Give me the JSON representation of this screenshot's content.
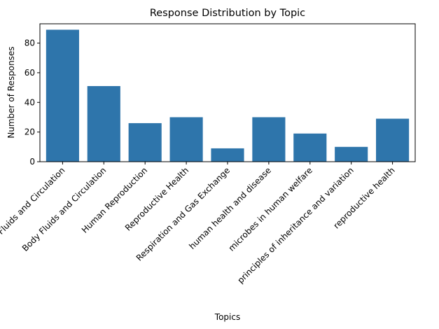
{
  "chart_data": {
    "type": "bar",
    "title": "Response Distribution by Topic",
    "xlabel": "Topics",
    "ylabel": "Number of Responses",
    "categories": [
      "Body Fluids and Circulation",
      "Body Fluids and Circulation",
      "Human Reproduction",
      "Reproductive Health",
      "Respiration and Gas Exchange",
      "human health and disease",
      "microbes in human welfare",
      "principles of inheritance and variation",
      "reproductive health"
    ],
    "values": [
      89,
      51,
      26,
      30,
      9,
      30,
      19,
      10,
      29
    ],
    "ylim": [
      0,
      93
    ],
    "yticks": [
      0,
      20,
      40,
      60,
      80
    ],
    "grid": false,
    "bar_color": "#2e75ab"
  }
}
